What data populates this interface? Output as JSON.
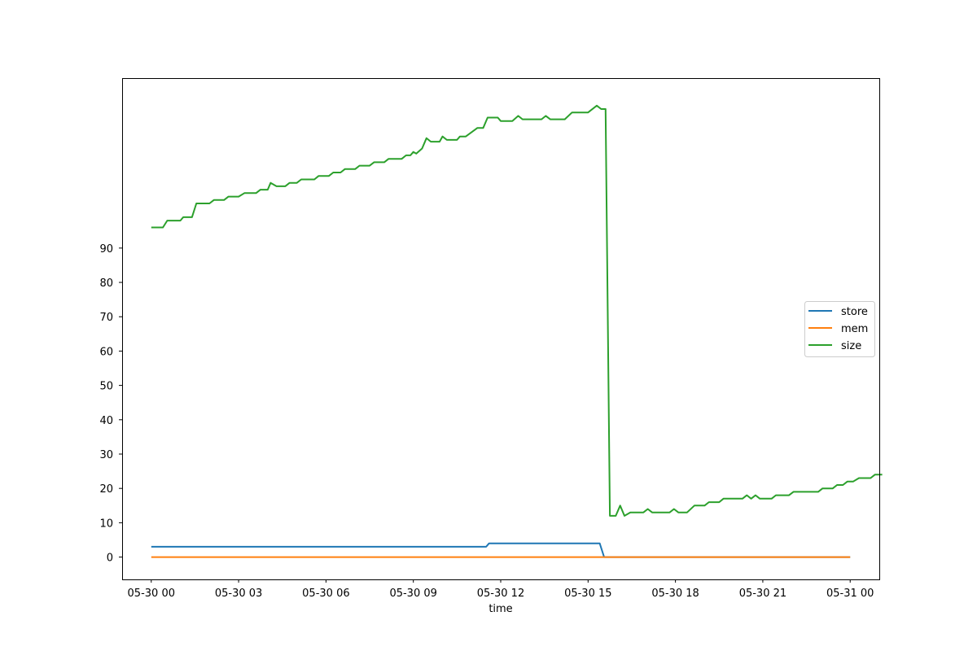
{
  "chart_data": {
    "type": "line",
    "title": "",
    "xlabel": "time",
    "ylabel": "",
    "x_ticks": [
      "05-30 00",
      "05-30 03",
      "05-30 06",
      "05-30 09",
      "05-30 12",
      "05-30 15",
      "05-30 18",
      "05-30 21",
      "05-31 00"
    ],
    "y_ticks": [
      0,
      10,
      20,
      30,
      40,
      50,
      60,
      70,
      80,
      90
    ],
    "xlim_hours": [
      -1.0,
      25.0
    ],
    "ylim": [
      -6.5,
      139.5
    ],
    "grid": false,
    "legend_position": "center-right",
    "series": [
      {
        "name": "store",
        "color": "#1f77b4",
        "points": [
          [
            0,
            3
          ],
          [
            11.5,
            3
          ],
          [
            11.6,
            4
          ],
          [
            15.4,
            4
          ],
          [
            15.55,
            0
          ],
          [
            24,
            0
          ]
        ]
      },
      {
        "name": "mem",
        "color": "#ff7f0e",
        "points": [
          [
            0,
            0
          ],
          [
            24,
            0
          ]
        ]
      },
      {
        "name": "size",
        "color": "#2ca02c",
        "points": [
          [
            0,
            96
          ],
          [
            0.4,
            96
          ],
          [
            0.55,
            98
          ],
          [
            1.0,
            98
          ],
          [
            1.1,
            99
          ],
          [
            1.4,
            99
          ],
          [
            1.55,
            103
          ],
          [
            2.0,
            103
          ],
          [
            2.15,
            104
          ],
          [
            2.5,
            104
          ],
          [
            2.65,
            105
          ],
          [
            3.0,
            105
          ],
          [
            3.2,
            106
          ],
          [
            3.6,
            106
          ],
          [
            3.75,
            107
          ],
          [
            4.0,
            107
          ],
          [
            4.1,
            109
          ],
          [
            4.3,
            108
          ],
          [
            4.6,
            108
          ],
          [
            4.75,
            109
          ],
          [
            5.0,
            109
          ],
          [
            5.15,
            110
          ],
          [
            5.6,
            110
          ],
          [
            5.75,
            111
          ],
          [
            6.1,
            111
          ],
          [
            6.25,
            112
          ],
          [
            6.5,
            112
          ],
          [
            6.65,
            113
          ],
          [
            7.0,
            113
          ],
          [
            7.15,
            114
          ],
          [
            7.5,
            114
          ],
          [
            7.65,
            115
          ],
          [
            8.0,
            115
          ],
          [
            8.15,
            116
          ],
          [
            8.6,
            116
          ],
          [
            8.75,
            117
          ],
          [
            8.9,
            117
          ],
          [
            9.0,
            118
          ],
          [
            9.1,
            117.5
          ],
          [
            9.3,
            119
          ],
          [
            9.45,
            122
          ],
          [
            9.6,
            121
          ],
          [
            9.9,
            121
          ],
          [
            10.0,
            122.5
          ],
          [
            10.15,
            121.5
          ],
          [
            10.5,
            121.5
          ],
          [
            10.6,
            122.5
          ],
          [
            10.8,
            122.5
          ],
          [
            11.2,
            125
          ],
          [
            11.4,
            125
          ],
          [
            11.55,
            128
          ],
          [
            11.9,
            128
          ],
          [
            12.0,
            127
          ],
          [
            12.4,
            127
          ],
          [
            12.6,
            128.5
          ],
          [
            12.75,
            127.5
          ],
          [
            13.4,
            127.5
          ],
          [
            13.55,
            128.5
          ],
          [
            13.7,
            127.5
          ],
          [
            14.2,
            127.5
          ],
          [
            14.45,
            129.5
          ],
          [
            15.0,
            129.5
          ],
          [
            15.3,
            131.5
          ],
          [
            15.45,
            130.5
          ],
          [
            15.6,
            130.5
          ],
          [
            15.75,
            12
          ],
          [
            15.95,
            12
          ],
          [
            16.1,
            15
          ],
          [
            16.25,
            12
          ],
          [
            16.45,
            13
          ],
          [
            16.9,
            13
          ],
          [
            17.05,
            14
          ],
          [
            17.2,
            13
          ],
          [
            17.8,
            13
          ],
          [
            17.95,
            14
          ],
          [
            18.1,
            13
          ],
          [
            18.4,
            13
          ],
          [
            18.65,
            15
          ],
          [
            19.0,
            15
          ],
          [
            19.15,
            16
          ],
          [
            19.5,
            16
          ],
          [
            19.65,
            17
          ],
          [
            20.3,
            17
          ],
          [
            20.45,
            18
          ],
          [
            20.6,
            17
          ],
          [
            20.75,
            18
          ],
          [
            20.9,
            17
          ],
          [
            21.3,
            17
          ],
          [
            21.45,
            18
          ],
          [
            21.9,
            18
          ],
          [
            22.05,
            19
          ],
          [
            22.9,
            19
          ],
          [
            23.05,
            20
          ],
          [
            23.4,
            20
          ],
          [
            23.55,
            21
          ],
          [
            23.75,
            21
          ],
          [
            23.9,
            22
          ],
          [
            24.1,
            22
          ],
          [
            24.3,
            23
          ],
          [
            24.7,
            23
          ],
          [
            24.85,
            24
          ],
          [
            25.1,
            24
          ]
        ]
      }
    ]
  }
}
